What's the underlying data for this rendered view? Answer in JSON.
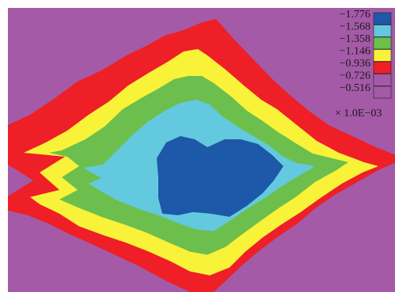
{
  "chart_data": {
    "type": "heatmap",
    "subtype": "filled-contour",
    "title": "",
    "xlabel": "",
    "ylabel": "",
    "scale_label": "× 1.0E−03",
    "background_color": "#a45aa7",
    "levels": [
      {
        "label": "−1.776",
        "value": -1.776,
        "color": "#1e58a8"
      },
      {
        "label": "−1.568",
        "value": -1.568,
        "color": "#63c9de"
      },
      {
        "label": "−1.358",
        "value": -1.358,
        "color": "#6cbf4c"
      },
      {
        "label": "−1.146",
        "value": -1.146,
        "color": "#f8f239"
      },
      {
        "label": "−0.936",
        "value": -0.936,
        "color": "#ee1f26"
      },
      {
        "label": "−0.726",
        "value": -0.726,
        "color": "#a45aa7"
      },
      {
        "label": "−0.516",
        "value": -0.516,
        "color": "#a45aa7"
      }
    ],
    "legend_position": "top-right"
  }
}
